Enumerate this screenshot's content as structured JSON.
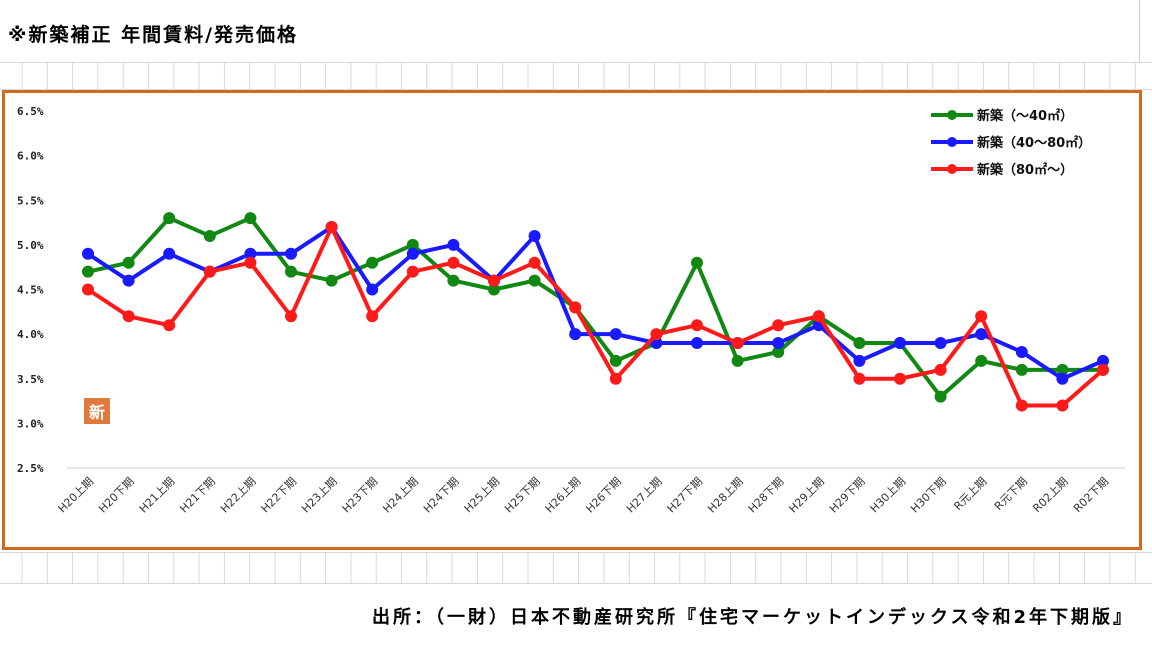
{
  "page_title": "※新築補正 年間賃料/発売価格",
  "source": "出所：（一財）日本不動産研究所『住宅マーケットインデックス令和2年下期版』",
  "badge": "新",
  "colors": {
    "frame": "#d2691e",
    "badge": "#e07a3c",
    "grid": "#d9d9d9"
  },
  "chart_data": {
    "type": "line",
    "title": "",
    "xlabel": "",
    "ylabel": "",
    "ylim": [
      2.5,
      6.5
    ],
    "yticks": [
      "2.5%",
      "3.0%",
      "3.5%",
      "4.0%",
      "4.5%",
      "5.0%",
      "5.5%",
      "6.0%",
      "6.5%"
    ],
    "grid": false,
    "legend_position": "top-right",
    "categories": [
      "H20上期",
      "H20下期",
      "H21上期",
      "H21下期",
      "H22上期",
      "H22下期",
      "H23上期",
      "H23下期",
      "H24上期",
      "H24下期",
      "H25上期",
      "H25下期",
      "H26上期",
      "H26下期",
      "H27上期",
      "H27下期",
      "H28上期",
      "H28下期",
      "H29上期",
      "H29下期",
      "H30上期",
      "H30下期",
      "R元上期",
      "R元下期",
      "R02上期",
      "R02下期"
    ],
    "series": [
      {
        "name": "新築（～40㎡）",
        "color": "#118811",
        "values": [
          4.7,
          4.8,
          5.3,
          5.1,
          5.3,
          4.7,
          4.6,
          4.8,
          5.0,
          4.6,
          4.5,
          4.6,
          4.3,
          3.7,
          3.9,
          4.8,
          3.7,
          3.8,
          4.2,
          3.9,
          3.9,
          3.3,
          3.7,
          3.6,
          3.6,
          3.6
        ]
      },
      {
        "name": "新築（40～80㎡）",
        "color": "#1a1aff",
        "values": [
          4.9,
          4.6,
          4.9,
          4.7,
          4.9,
          4.9,
          5.2,
          4.5,
          4.9,
          5.0,
          4.6,
          5.1,
          4.0,
          4.0,
          3.9,
          3.9,
          3.9,
          3.9,
          4.1,
          3.7,
          3.9,
          3.9,
          4.0,
          3.8,
          3.5,
          3.7
        ]
      },
      {
        "name": "新築（80㎡～）",
        "color": "#ff1a1a",
        "values": [
          4.5,
          4.2,
          4.1,
          4.7,
          4.8,
          4.2,
          5.2,
          4.2,
          4.7,
          4.8,
          4.6,
          4.8,
          4.3,
          3.5,
          4.0,
          4.1,
          3.9,
          4.1,
          4.2,
          3.5,
          3.5,
          3.6,
          4.2,
          3.2,
          3.2,
          3.6
        ]
      }
    ]
  }
}
